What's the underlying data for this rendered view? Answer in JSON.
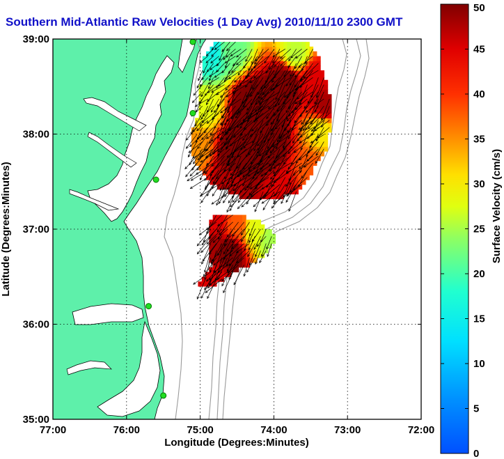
{
  "title": "Southern Mid-Atlantic Raw Velocities (1 Day Avg) 2010/11/10 2300 GMT",
  "chart_data": {
    "type": "vector-field-map",
    "title": "Southern Mid-Atlantic Raw Velocities (1 Day Avg) 2010/11/10 2300 GMT",
    "xlabel": "Longitude (Degrees:Minutes)",
    "ylabel": "Latitude (Degrees:Minutes)",
    "xlim": [
      -77,
      -72
    ],
    "ylim": [
      35,
      39
    ],
    "x_ticks": [
      {
        "value": -77,
        "label": "77:00"
      },
      {
        "value": -76,
        "label": "76:00"
      },
      {
        "value": -75,
        "label": "75:00"
      },
      {
        "value": -74,
        "label": "74:00"
      },
      {
        "value": -73,
        "label": "73:00"
      },
      {
        "value": -72,
        "label": "72:00"
      }
    ],
    "y_ticks": [
      {
        "value": 39,
        "label": "39:00"
      },
      {
        "value": 38,
        "label": "38:00"
      },
      {
        "value": 37,
        "label": "37:00"
      },
      {
        "value": 36,
        "label": "36:00"
      },
      {
        "value": 35,
        "label": "35:00"
      }
    ],
    "grid": "dotted",
    "colorbar": {
      "label": "Surface Velocity (cm/s)",
      "range": [
        0,
        50
      ],
      "ticks": [
        "0",
        "5",
        "10",
        "15",
        "20",
        "25",
        "30",
        "35",
        "40",
        "45",
        "50"
      ],
      "colormap": "jet"
    },
    "land_color": "#5ef0aa",
    "coastline_color": "#000000",
    "bathymetry_color": "#999999",
    "arrow_color": "#000000",
    "stations": [
      {
        "lon": -75.1,
        "lat": 38.97
      },
      {
        "lon": -75.1,
        "lat": 38.22
      },
      {
        "lon": -75.6,
        "lat": 37.52
      },
      {
        "lon": -75.7,
        "lat": 36.19
      },
      {
        "lon": -75.5,
        "lat": 35.25
      }
    ],
    "regions": [
      {
        "name": "northern-patch",
        "polygon": [
          [
            -74.8,
            38.98
          ],
          [
            -74.5,
            38.97
          ],
          [
            -74.2,
            38.95
          ],
          [
            -73.55,
            38.95
          ],
          [
            -73.42,
            38.88
          ],
          [
            -73.3,
            38.58
          ],
          [
            -73.2,
            38.33
          ],
          [
            -73.2,
            38.25
          ],
          [
            -73.28,
            37.85
          ],
          [
            -73.45,
            37.68
          ],
          [
            -73.5,
            37.55
          ],
          [
            -73.62,
            37.42
          ],
          [
            -73.8,
            37.35
          ],
          [
            -74.0,
            37.33
          ],
          [
            -74.4,
            37.32
          ],
          [
            -74.8,
            37.45
          ],
          [
            -75.08,
            37.68
          ],
          [
            -75.12,
            37.98
          ],
          [
            -75.0,
            38.3
          ],
          [
            -75.0,
            38.5
          ],
          [
            -74.95,
            38.8
          ]
        ],
        "speed_field": [
          {
            "lon": -75.0,
            "lat": 38.8,
            "speed": 18
          },
          {
            "lon": -74.85,
            "lat": 38.9,
            "speed": 15
          },
          {
            "lon": -74.6,
            "lat": 38.9,
            "speed": 22
          },
          {
            "lon": -73.7,
            "lat": 38.85,
            "speed": 26
          },
          {
            "lon": -73.45,
            "lat": 38.6,
            "speed": 45
          },
          {
            "lon": -73.3,
            "lat": 38.3,
            "speed": 48
          },
          {
            "lon": -73.35,
            "lat": 38.05,
            "speed": 30
          },
          {
            "lon": -73.5,
            "lat": 37.62,
            "speed": 38
          },
          {
            "lon": -73.9,
            "lat": 37.42,
            "speed": 45
          },
          {
            "lon": -74.6,
            "lat": 37.5,
            "speed": 47
          },
          {
            "lon": -75.05,
            "lat": 37.85,
            "speed": 35
          },
          {
            "lon": -74.95,
            "lat": 38.3,
            "speed": 28
          },
          {
            "lon": -74.3,
            "lat": 38.3,
            "speed": 55
          },
          {
            "lon": -74.1,
            "lat": 37.9,
            "speed": 55
          },
          {
            "lon": -74.5,
            "lat": 37.8,
            "speed": 55
          },
          {
            "lon": -73.85,
            "lat": 38.55,
            "speed": 52
          }
        ],
        "direction_deg": 220
      },
      {
        "name": "southern-patch",
        "polygon": [
          [
            -74.85,
            37.17
          ],
          [
            -74.5,
            37.15
          ],
          [
            -74.2,
            37.08
          ],
          [
            -73.95,
            36.92
          ],
          [
            -74.1,
            36.75
          ],
          [
            -74.4,
            36.6
          ],
          [
            -74.8,
            36.42
          ],
          [
            -75.08,
            36.4
          ],
          [
            -74.85,
            36.6
          ],
          [
            -74.88,
            36.88
          ]
        ],
        "speed_field": [
          {
            "lon": -74.8,
            "lat": 37.1,
            "speed": 45
          },
          {
            "lon": -74.5,
            "lat": 37.05,
            "speed": 38
          },
          {
            "lon": -74.25,
            "lat": 37.0,
            "speed": 28
          },
          {
            "lon": -74.05,
            "lat": 36.9,
            "speed": 25
          },
          {
            "lon": -74.6,
            "lat": 36.75,
            "speed": 52
          },
          {
            "lon": -74.85,
            "lat": 36.8,
            "speed": 48
          },
          {
            "lon": -74.8,
            "lat": 36.5,
            "speed": 45
          }
        ],
        "direction_deg": 215
      }
    ]
  }
}
